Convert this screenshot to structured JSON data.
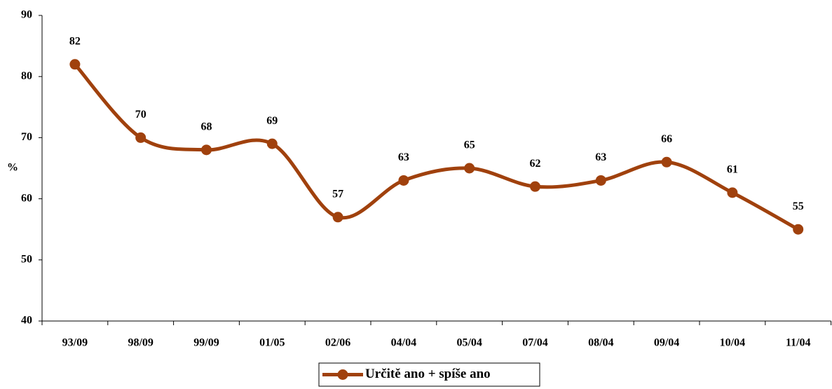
{
  "chart_data": {
    "type": "line",
    "y_label": "%",
    "categories": [
      "93/09",
      "98/09",
      "99/09",
      "01/05",
      "02/06",
      "04/04",
      "05/04",
      "07/04",
      "08/04",
      "09/04",
      "10/04",
      "11/04"
    ],
    "series": [
      {
        "name": "Určitě ano + spíše ano",
        "color": "#a0410d",
        "values": [
          82,
          70,
          68,
          69,
          57,
          63,
          65,
          62,
          63,
          66,
          61,
          55
        ]
      }
    ],
    "ylim": [
      40,
      90
    ],
    "yticks": [
      40,
      50,
      60,
      70,
      80,
      90
    ],
    "legend": "bottom"
  }
}
